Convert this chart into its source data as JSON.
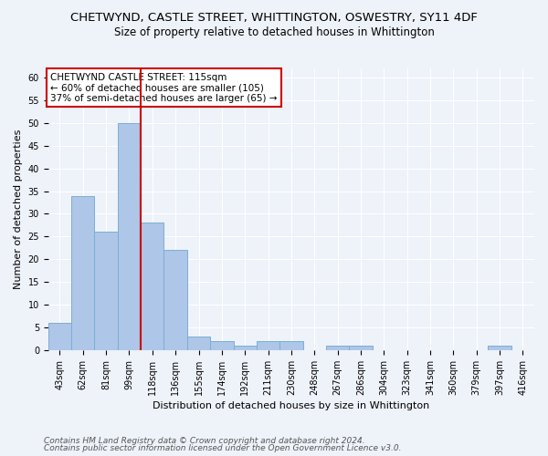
{
  "title1": "CHETWYND, CASTLE STREET, WHITTINGTON, OSWESTRY, SY11 4DF",
  "title2": "Size of property relative to detached houses in Whittington",
  "xlabel": "Distribution of detached houses by size in Whittington",
  "ylabel": "Number of detached properties",
  "categories": [
    "43sqm",
    "62sqm",
    "81sqm",
    "99sqm",
    "118sqm",
    "136sqm",
    "155sqm",
    "174sqm",
    "192sqm",
    "211sqm",
    "230sqm",
    "248sqm",
    "267sqm",
    "286sqm",
    "304sqm",
    "323sqm",
    "341sqm",
    "360sqm",
    "379sqm",
    "397sqm",
    "416sqm"
  ],
  "values": [
    6,
    34,
    26,
    50,
    28,
    22,
    3,
    2,
    1,
    2,
    2,
    0,
    1,
    1,
    0,
    0,
    0,
    0,
    0,
    1,
    0
  ],
  "bar_color": "#aec6e8",
  "bar_edge_color": "#7aafd4",
  "vline_color": "#cc0000",
  "annotation_title": "CHETWYND CASTLE STREET: 115sqm",
  "annotation_line1": "← 60% of detached houses are smaller (105)",
  "annotation_line2": "37% of semi-detached houses are larger (65) →",
  "annotation_box_color": "#ffffff",
  "annotation_box_edge_color": "#cc0000",
  "ylim": [
    0,
    62
  ],
  "yticks": [
    0,
    5,
    10,
    15,
    20,
    25,
    30,
    35,
    40,
    45,
    50,
    55,
    60
  ],
  "footer1": "Contains HM Land Registry data © Crown copyright and database right 2024.",
  "footer2": "Contains public sector information licensed under the Open Government Licence v3.0.",
  "background_color": "#eef2f9",
  "grid_color": "#ffffff",
  "title1_fontsize": 9.5,
  "title2_fontsize": 8.5,
  "xlabel_fontsize": 8,
  "ylabel_fontsize": 8,
  "tick_fontsize": 7,
  "annotation_fontsize": 7.5,
  "footer_fontsize": 6.5
}
